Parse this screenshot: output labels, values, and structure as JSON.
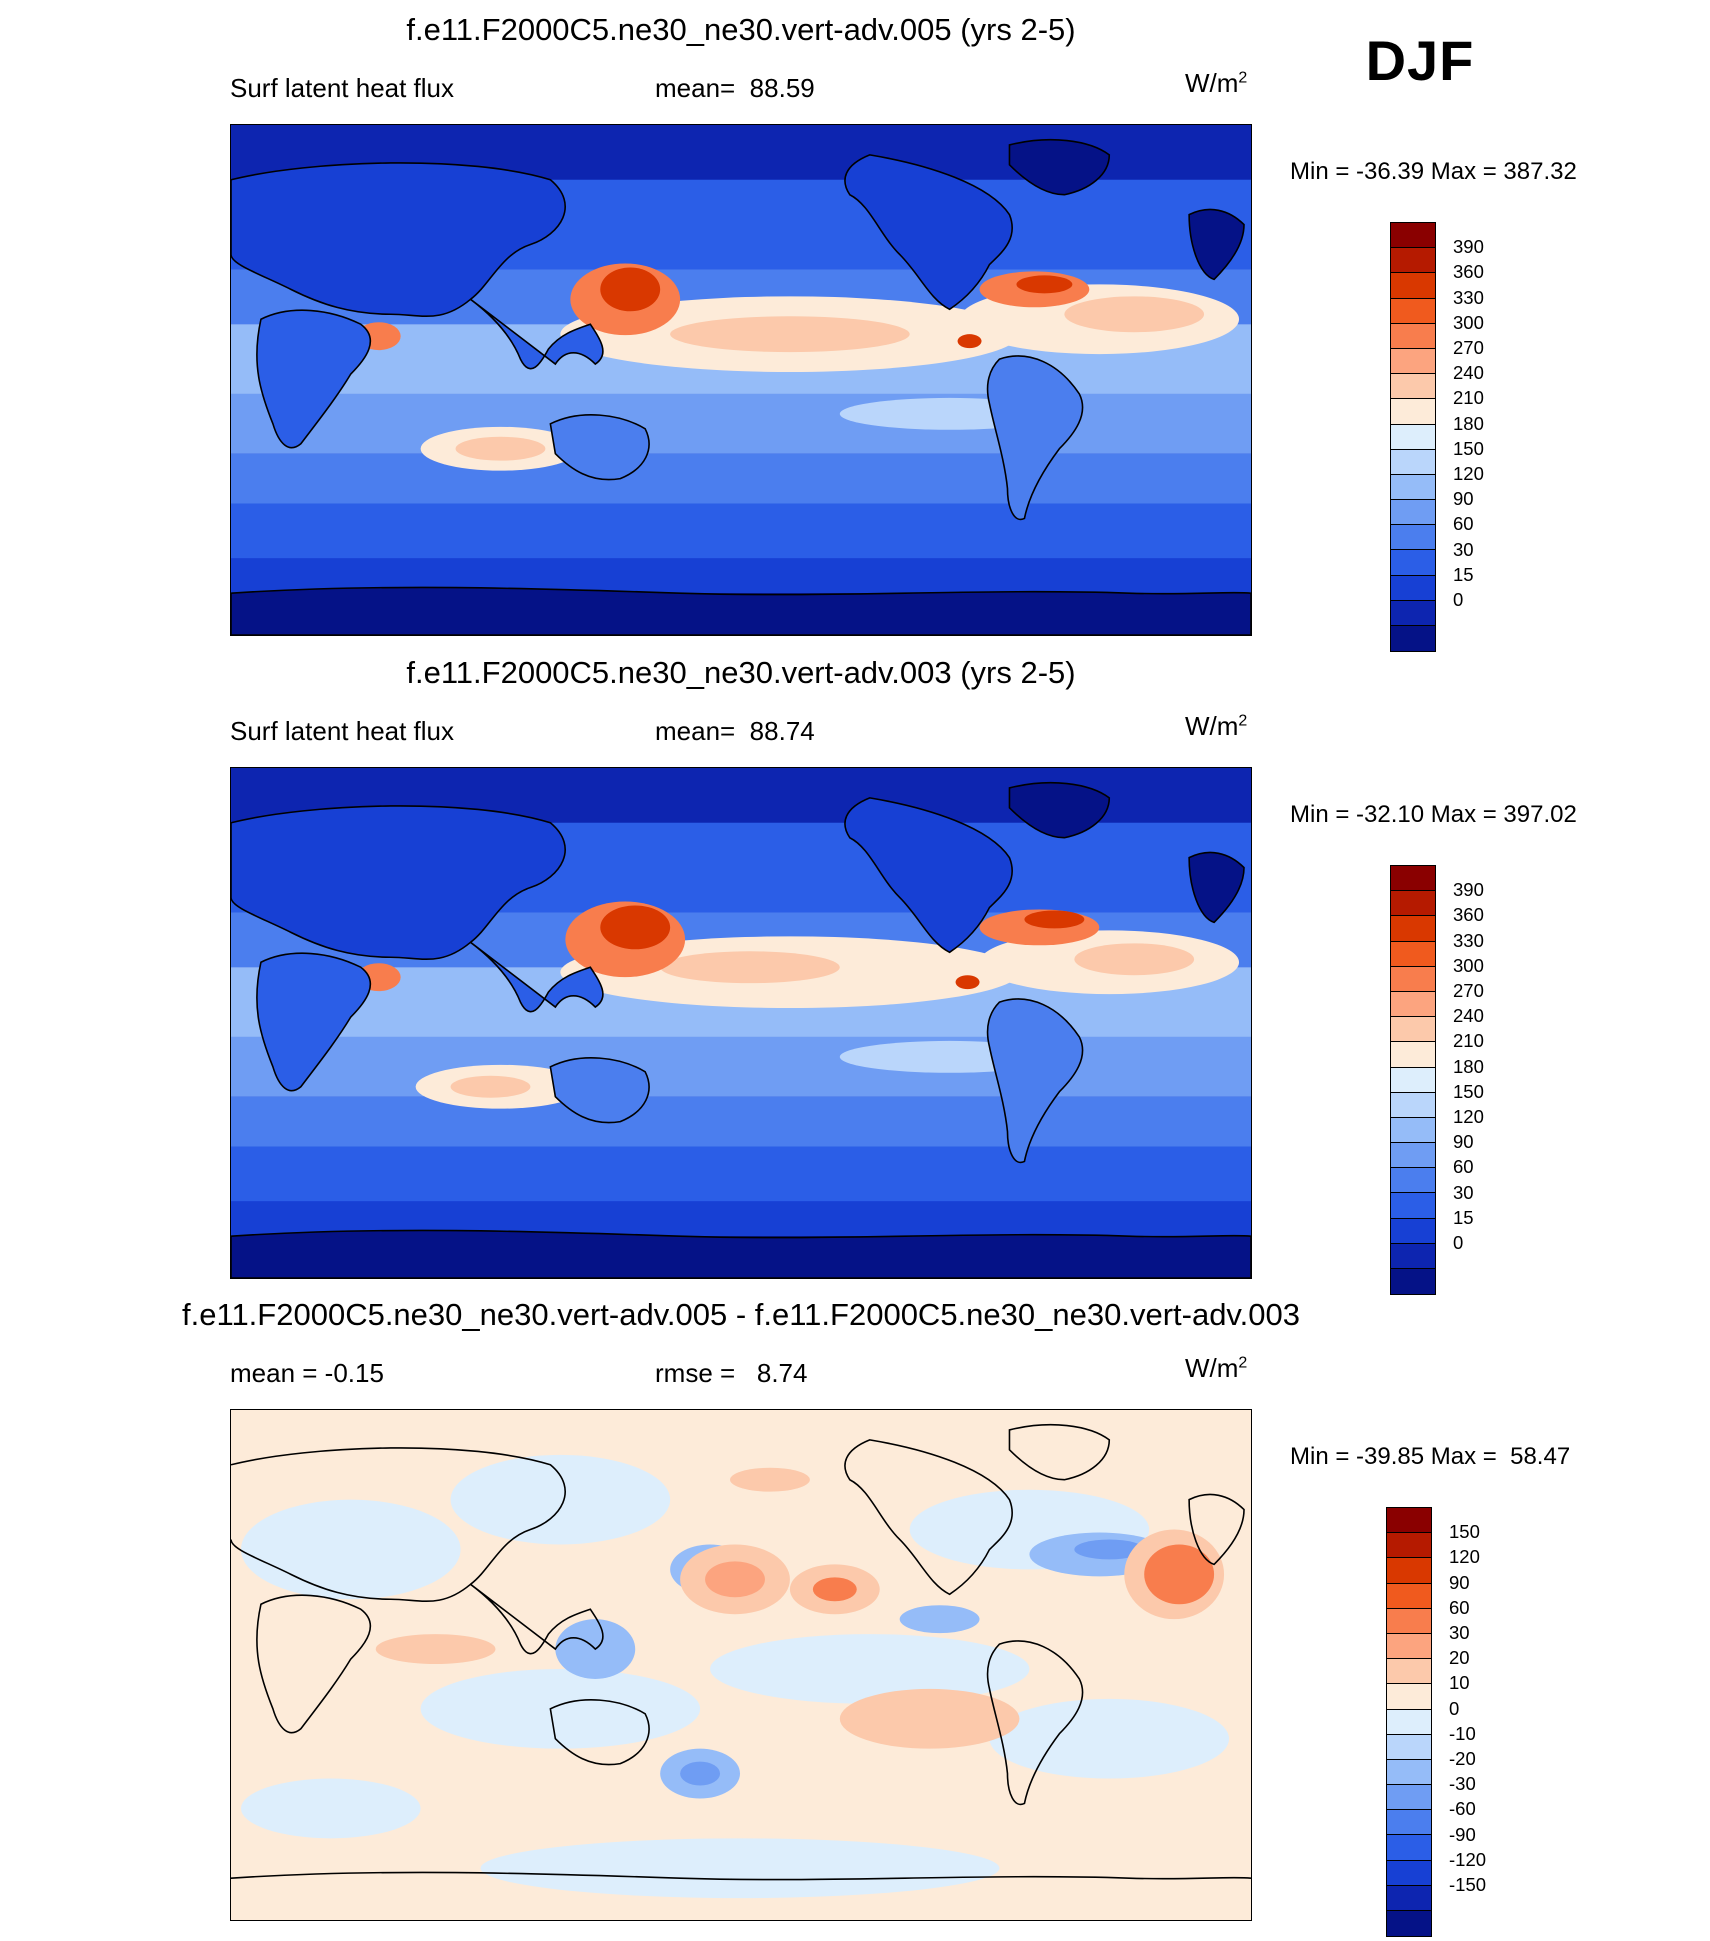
{
  "season": "DJF",
  "panels": [
    {
      "title": "f.e11.F2000C5.ne30_ne30.vert-adv.005 (yrs 2-5)",
      "left": "Surf latent heat flux",
      "mid": "mean=  88.59",
      "units_base": "W/m",
      "units_exp": "2",
      "minmax": "Min = -36.39 Max = 387.32",
      "scale": "abs",
      "colorbar": {
        "colors": [
          "#8a0000",
          "#b51a00",
          "#d93800",
          "#f05a1e",
          "#f87d4d",
          "#fca47f",
          "#fcc9ab",
          "#fdebd9",
          "#ddeefc",
          "#bad6fb",
          "#95bcf8",
          "#6f9df3",
          "#4b7eee",
          "#2b5ee7",
          "#1740d4",
          "#0d25b0",
          "#051287"
        ],
        "ticks": [
          "390",
          "360",
          "330",
          "300",
          "270",
          "240",
          "210",
          "180",
          "150",
          "120",
          "90",
          "60",
          "30",
          "15",
          "0"
        ]
      }
    },
    {
      "title": "f.e11.F2000C5.ne30_ne30.vert-adv.003 (yrs 2-5)",
      "left": "Surf latent heat flux",
      "mid": "mean=  88.74",
      "units_base": "W/m",
      "units_exp": "2",
      "minmax": "Min = -32.10 Max = 397.02",
      "scale": "abs",
      "colorbar": {
        "colors": [
          "#8a0000",
          "#b51a00",
          "#d93800",
          "#f05a1e",
          "#f87d4d",
          "#fca47f",
          "#fcc9ab",
          "#fdebd9",
          "#ddeefc",
          "#bad6fb",
          "#95bcf8",
          "#6f9df3",
          "#4b7eee",
          "#2b5ee7",
          "#1740d4",
          "#0d25b0",
          "#051287"
        ],
        "ticks": [
          "390",
          "360",
          "330",
          "300",
          "270",
          "240",
          "210",
          "180",
          "150",
          "120",
          "90",
          "60",
          "30",
          "15",
          "0"
        ]
      }
    },
    {
      "title": "f.e11.F2000C5.ne30_ne30.vert-adv.005 - f.e11.F2000C5.ne30_ne30.vert-adv.003",
      "left": "mean =  -0.15",
      "mid": "rmse =   8.74",
      "units_base": "W/m",
      "units_exp": "2",
      "minmax": "Min = -39.85 Max =  58.47",
      "scale": "diff",
      "colorbar": {
        "colors": [
          "#8a0000",
          "#b51a00",
          "#d93800",
          "#f05a1e",
          "#f87d4d",
          "#fca47f",
          "#fcc9ab",
          "#fdebd9",
          "#ddeefc",
          "#bad6fb",
          "#95bcf8",
          "#6f9df3",
          "#4b7eee",
          "#2b5ee7",
          "#1740d4",
          "#0d25b0",
          "#051287"
        ],
        "ticks": [
          "150",
          "120",
          "90",
          "60",
          "30",
          "20",
          "10",
          "0",
          "-10",
          "-20",
          "-30",
          "-60",
          "-90",
          "-120",
          "-150"
        ]
      }
    }
  ]
}
